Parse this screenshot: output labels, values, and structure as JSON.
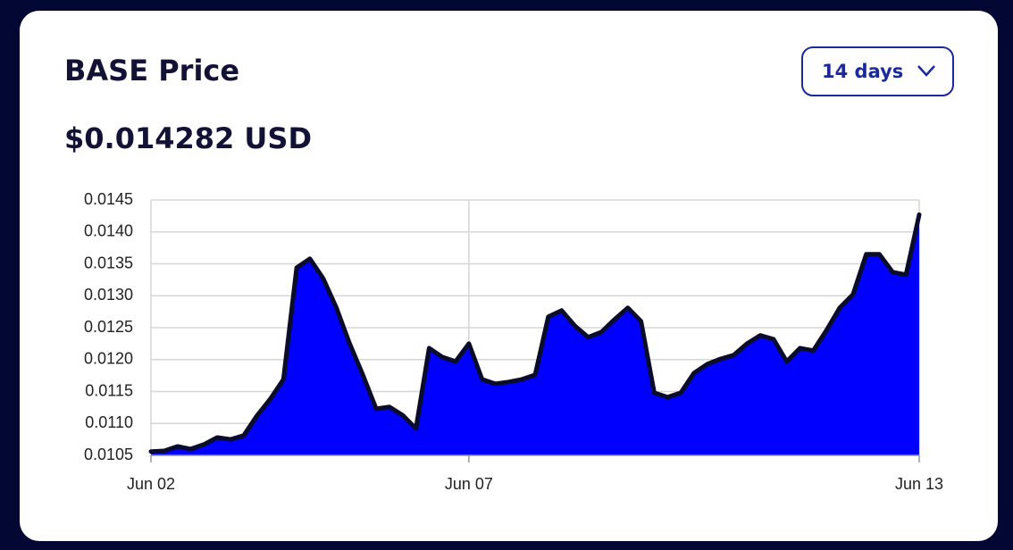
{
  "chart_data": {
    "type": "area",
    "title": "BASE Price",
    "subtitle": "$0.014282 USD",
    "range_selector": "14 days",
    "categories": [
      "Jun 02",
      null,
      null,
      null,
      null,
      null,
      null,
      null,
      null,
      null,
      null,
      null,
      null,
      null,
      null,
      null,
      null,
      null,
      null,
      null,
      null,
      null,
      null,
      null,
      "Jun 07",
      null,
      null,
      null,
      null,
      null,
      null,
      null,
      null,
      null,
      null,
      null,
      null,
      null,
      null,
      null,
      null,
      null,
      null,
      null,
      null,
      null,
      null,
      null,
      null,
      null,
      null,
      null,
      null,
      null,
      null,
      null,
      null,
      null,
      "Jun 13"
    ],
    "series": [
      {
        "name": "BASE",
        "color": "#0000ff",
        "line_color": "#0b0c2a",
        "values": [
          0.01056,
          0.01057,
          0.01064,
          0.0106,
          0.01067,
          0.01078,
          0.01075,
          0.01081,
          0.01112,
          0.01138,
          0.01169,
          0.01344,
          0.01358,
          0.01327,
          0.01281,
          0.01225,
          0.01176,
          0.01123,
          0.01126,
          0.01113,
          0.01092,
          0.01218,
          0.01204,
          0.01197,
          0.01225,
          0.01169,
          0.01162,
          0.01165,
          0.01169,
          0.01176,
          0.01267,
          0.01277,
          0.01253,
          0.01235,
          0.01243,
          0.01263,
          0.01281,
          0.0126,
          0.01148,
          0.01141,
          0.01148,
          0.01179,
          0.01193,
          0.01201,
          0.01207,
          0.01225,
          0.01238,
          0.01232,
          0.01197,
          0.01218,
          0.01214,
          0.01246,
          0.01281,
          0.01302,
          0.01365,
          0.01365,
          0.01337,
          0.01333,
          0.01427
        ]
      }
    ],
    "ylim": [
      0.0105,
      0.0145
    ],
    "yticks": [
      0.0105,
      {
        "value": 0.011,
        "label": "0.0110"
      },
      0.0115,
      {
        "value": 0.012,
        "label": "0.0120"
      },
      0.0125,
      {
        "value": 0.013,
        "label": "0.0130"
      },
      0.0135,
      {
        "value": 0.014,
        "label": "0.0140"
      },
      0.0145
    ],
    "grid": true
  }
}
